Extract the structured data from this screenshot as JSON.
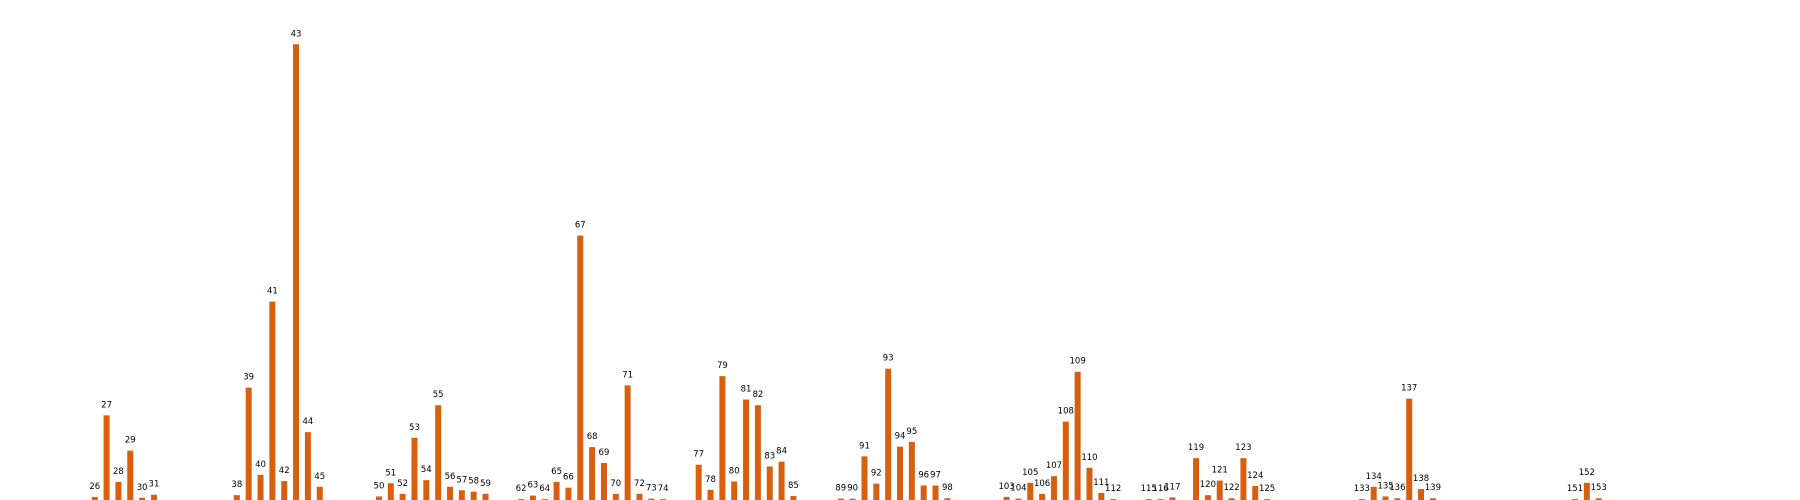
{
  "chart_data": {
    "type": "bar",
    "title": "",
    "xlabel": "",
    "ylabel": "",
    "axes_visible": false,
    "grid": false,
    "bar_color": "#D95F0E",
    "categories": [
      26,
      27,
      28,
      29,
      30,
      31,
      38,
      39,
      40,
      41,
      42,
      43,
      44,
      45,
      50,
      51,
      52,
      53,
      54,
      55,
      56,
      57,
      58,
      59,
      62,
      63,
      64,
      65,
      66,
      67,
      68,
      69,
      70,
      71,
      72,
      73,
      74,
      77,
      78,
      79,
      80,
      81,
      82,
      83,
      84,
      85,
      89,
      90,
      91,
      92,
      93,
      94,
      95,
      96,
      97,
      98,
      103,
      104,
      105,
      106,
      107,
      108,
      109,
      110,
      111,
      112,
      115,
      116,
      117,
      119,
      120,
      121,
      122,
      123,
      124,
      125,
      133,
      134,
      135,
      136,
      137,
      138,
      139,
      151,
      152,
      153
    ],
    "x": [
      26,
      27,
      28,
      29,
      30,
      31,
      38,
      39,
      40,
      41,
      42,
      43,
      44,
      45,
      50,
      51,
      52,
      53,
      54,
      55,
      56,
      57,
      58,
      59,
      62,
      63,
      64,
      65,
      66,
      67,
      68,
      69,
      70,
      71,
      72,
      73,
      74,
      77,
      78,
      79,
      80,
      81,
      82,
      83,
      84,
      85,
      89,
      90,
      91,
      92,
      93,
      94,
      95,
      96,
      97,
      98,
      103,
      104,
      105,
      106,
      107,
      108,
      109,
      110,
      111,
      112,
      115,
      116,
      117,
      119,
      120,
      121,
      122,
      123,
      124,
      125,
      133,
      134,
      135,
      136,
      137,
      138,
      139,
      151,
      152,
      153
    ],
    "values": [
      0.7,
      19.2,
      4.1,
      11.2,
      0.5,
      1.2,
      1.1,
      25.5,
      5.7,
      45,
      4.3,
      103.4,
      15.4,
      3,
      0.8,
      3.8,
      1.4,
      14.1,
      4.5,
      21.5,
      3,
      2.2,
      1.9,
      1.4,
      0.2,
      1,
      0.2,
      4.1,
      2.8,
      60,
      12,
      8.4,
      1.4,
      26,
      1.4,
      0.3,
      0.2,
      8,
      2.3,
      28.1,
      4.2,
      22.8,
      21.5,
      7.6,
      8.7,
      0.9,
      0.3,
      0.3,
      9.9,
      3.7,
      29.8,
      12.1,
      13.2,
      3.3,
      3.3,
      0.4,
      0.7,
      0.3,
      3.9,
      1.4,
      5.4,
      17.8,
      29.1,
      7.3,
      1.6,
      0.2,
      0.2,
      0.2,
      0.6,
      9.5,
      1.1,
      4.4,
      0.4,
      9.5,
      3.2,
      0.2,
      0.2,
      3,
      0.8,
      0.4,
      23,
      2.5,
      0.4,
      0.2,
      3.9,
      0.4
    ],
    "data_labels": [
      "26",
      "27",
      "28",
      "29",
      "30",
      "31",
      "38",
      "39",
      "40",
      "41",
      "42",
      "43",
      "44",
      "45",
      "50",
      "51",
      "52",
      "53",
      "54",
      "55",
      "56",
      "57",
      "58",
      "59",
      "62",
      "63",
      "64",
      "65",
      "66",
      "67",
      "68",
      "69",
      "70",
      "71",
      "72",
      "73",
      "74",
      "77",
      "78",
      "79",
      "80",
      "81",
      "82",
      "83",
      "84",
      "85",
      "89",
      "90",
      "91",
      "92",
      "93",
      "94",
      "95",
      "96",
      "97",
      "98",
      "103",
      "104",
      "105",
      "106",
      "107",
      "108",
      "109",
      "110",
      "111",
      "112",
      "115",
      "116",
      "117",
      "119",
      "120",
      "121",
      "122",
      "123",
      "124",
      "125",
      "133",
      "134",
      "135",
      "136",
      "137",
      "138",
      "139",
      "151",
      "152",
      "153"
    ],
    "ylim": [
      0,
      108
    ],
    "xlim": [
      18,
      170
    ]
  }
}
